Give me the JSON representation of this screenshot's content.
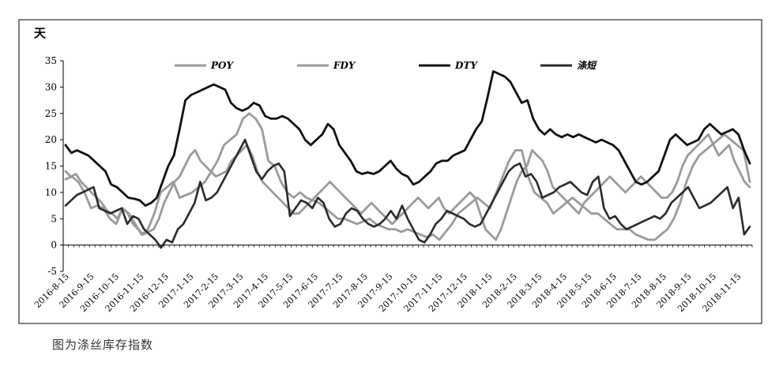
{
  "caption": "图为涤丝库存指数",
  "colors": {
    "POY": "#9a9a9a",
    "FDY": "#9a9a9a",
    "DTY": "#111111",
    "涤短": "#2a2a2a"
  },
  "chart_data": {
    "type": "line",
    "unit_label": "天",
    "ylim": [
      -5,
      35
    ],
    "yticks": [
      -5,
      0,
      5,
      10,
      15,
      20,
      25,
      30,
      35
    ],
    "grid": false,
    "legend_position": "top",
    "x_tick_labels": [
      "2016-8-15",
      "2016-9-15",
      "2016-10-15",
      "2016-11-15",
      "2016-12-15",
      "2017-1-15",
      "2017-2-15",
      "2017-3-15",
      "2017-4-15",
      "2017-5-15",
      "2017-6-15",
      "2017-7-15",
      "2017-8-15",
      "2017-9-15",
      "2017-10-15",
      "2017-11-15",
      "2017-12-15",
      "2018-1-15",
      "2018-2-15",
      "2018-3-15",
      "2018-4-15",
      "2018-5-15",
      "2018-6-15",
      "2018-7-15",
      "2018-8-15",
      "2018-9-15",
      "2018-10-15",
      "2018-11-15"
    ],
    "series": [
      {
        "name": "POY",
        "values": [
          12.5,
          13,
          12,
          10,
          7,
          7.5,
          7,
          5,
          4,
          7,
          6,
          4,
          2,
          3,
          6,
          10,
          11,
          12,
          9,
          9.5,
          10,
          11,
          12,
          14,
          16,
          19,
          20,
          21,
          24,
          25,
          24,
          22,
          16,
          15,
          12,
          10,
          9,
          10,
          9,
          8.5,
          8,
          7,
          6,
          5,
          5,
          4.5,
          4,
          4.5,
          5,
          4,
          3.5,
          3,
          3,
          2.5,
          3,
          2.5,
          2,
          1.5,
          2,
          1,
          2.5,
          4,
          6,
          7,
          8,
          9,
          8,
          7,
          10,
          13,
          16,
          18,
          18,
          13,
          10,
          9,
          8,
          6,
          7,
          8,
          9,
          8,
          7,
          6,
          6,
          5,
          4,
          3,
          3,
          3,
          2,
          1.5,
          1,
          1,
          2,
          3,
          5,
          8,
          12,
          15,
          17,
          18,
          19,
          20,
          21,
          20,
          19,
          18,
          12
        ]
      },
      {
        "name": "FDY",
        "values": [
          14,
          13,
          13.5,
          12,
          11,
          10,
          9,
          8,
          6.5,
          6,
          5,
          7,
          6,
          4,
          3,
          2,
          2.5,
          3,
          5,
          8,
          10,
          12,
          13,
          15,
          17,
          18,
          16,
          15,
          14,
          13,
          13.5,
          14,
          16,
          17,
          18,
          19,
          17,
          14,
          12,
          11,
          10,
          9,
          8,
          7,
          6,
          6,
          7,
          8,
          9,
          10,
          11,
          12,
          11,
          10,
          9,
          8,
          7,
          6,
          7,
          8,
          7,
          6,
          5,
          4,
          5,
          6,
          7,
          8,
          9,
          8,
          7,
          8,
          9,
          7,
          6,
          7,
          8,
          9,
          10,
          9,
          6,
          3,
          2,
          1,
          3,
          6,
          9,
          12,
          14,
          15,
          18,
          17,
          16,
          14,
          11,
          10,
          9,
          8,
          7,
          6,
          8,
          9,
          10,
          11,
          12,
          13,
          12,
          11,
          10,
          11,
          12,
          13,
          12,
          11,
          10,
          9,
          9,
          10,
          12,
          15,
          17,
          18,
          19,
          20,
          21,
          19,
          17,
          18,
          19,
          16,
          14,
          12,
          11
        ]
      },
      {
        "name": "DTY",
        "values": [
          19,
          17.5,
          18,
          17.5,
          17,
          16,
          15,
          14,
          11.5,
          11,
          10,
          9,
          8.8,
          8.5,
          7.5,
          8,
          9,
          12,
          15,
          17,
          22,
          27.5,
          28.5,
          29,
          29.5,
          30,
          30.5,
          30,
          29.5,
          27,
          26,
          25.5,
          26,
          27,
          26.5,
          24.5,
          24,
          24,
          24.5,
          24,
          23,
          22,
          20,
          19,
          20,
          21,
          23,
          22,
          19,
          17.5,
          16,
          14,
          13.5,
          13.8,
          13.5,
          14,
          15,
          16,
          14.5,
          13.5,
          13,
          11.5,
          12,
          13,
          14,
          15.5,
          16,
          16,
          17,
          17.5,
          18,
          20,
          22,
          23.5,
          28,
          33,
          32.5,
          32,
          31,
          29,
          27,
          27.5,
          24,
          22,
          21,
          22,
          21,
          20.5,
          21,
          20.5,
          21,
          20.5,
          20,
          19.5,
          20,
          19.5,
          19,
          18,
          16,
          14,
          12,
          11.5,
          12,
          13,
          14,
          17,
          20,
          21,
          20,
          19,
          19.5,
          20,
          22,
          23,
          22,
          21,
          21.5,
          22,
          21,
          18,
          15.5
        ]
      },
      {
        "name": "涤短",
        "values": [
          7.5,
          8.5,
          9.5,
          10,
          10.5,
          11,
          7,
          6.5,
          6,
          6.5,
          7,
          4,
          5.5,
          5,
          3,
          2,
          1,
          -0.5,
          1,
          0.5,
          3,
          4,
          6,
          8,
          12,
          8.5,
          9,
          10,
          12,
          14,
          16,
          18,
          20,
          17,
          14,
          12.5,
          14,
          15,
          15.5,
          14,
          5.5,
          7,
          8.5,
          8,
          7,
          9,
          8,
          5,
          3.5,
          4,
          6,
          7,
          6.5,
          5,
          4,
          3.5,
          4,
          5,
          6.5,
          5,
          7.5,
          5,
          3,
          1,
          0.5,
          2,
          4,
          5,
          6.5,
          6,
          5.5,
          5,
          4,
          3.5,
          4,
          6,
          8,
          10,
          12,
          14,
          15,
          15.5,
          13,
          13.5,
          12,
          9,
          9.5,
          10,
          11,
          11.5,
          12,
          11,
          10,
          9.5,
          12,
          13,
          7,
          5,
          5.5,
          4,
          3,
          3.5,
          4,
          4.5,
          5,
          5.5,
          5,
          6,
          8,
          9,
          10,
          11,
          9,
          7,
          7.5,
          8,
          9,
          10,
          11,
          7,
          9,
          2,
          3.5
        ]
      }
    ]
  }
}
